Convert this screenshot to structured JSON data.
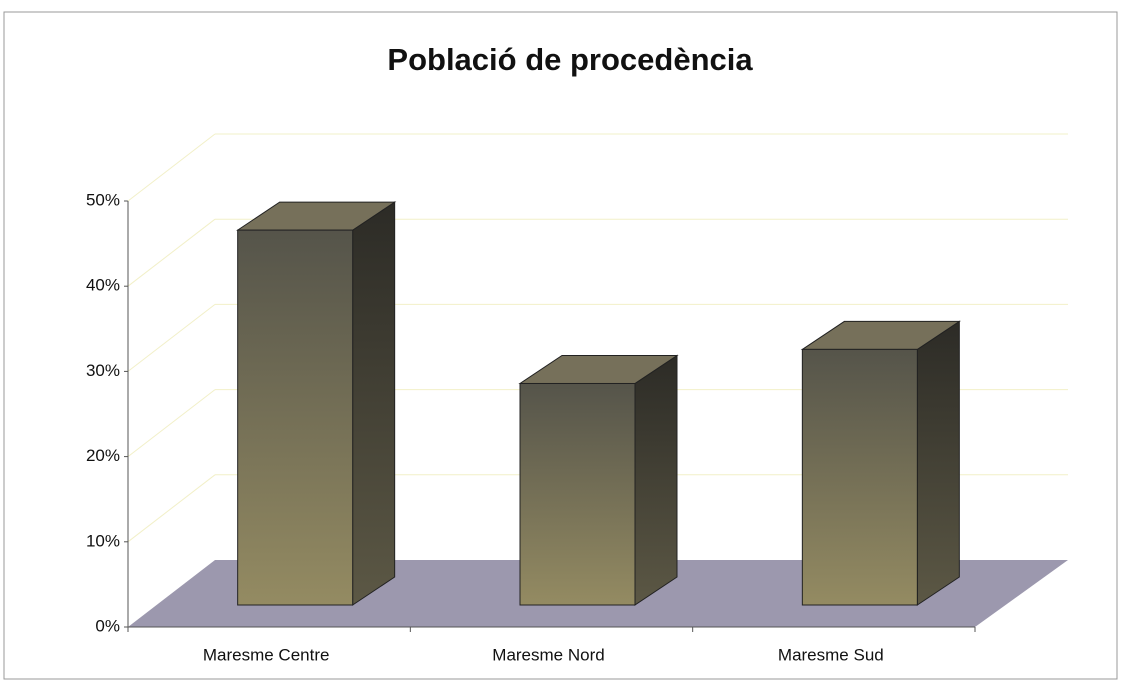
{
  "chart_data": {
    "type": "bar3d",
    "title": "Població de procedència",
    "categories": [
      "Maresme Centre",
      "Maresme Nord",
      "Maresme Sud"
    ],
    "values": [
      44,
      26,
      30
    ],
    "color": "#8a8560",
    "ylim": [
      0,
      50
    ],
    "yticks": [
      {
        "value": 0,
        "label": "0%"
      },
      {
        "value": 10,
        "label": "10%"
      },
      {
        "value": 20,
        "label": "20%"
      },
      {
        "value": 30,
        "label": "30%"
      },
      {
        "value": 40,
        "label": "40%"
      },
      {
        "value": 50,
        "label": "50%"
      }
    ],
    "grid": true
  }
}
